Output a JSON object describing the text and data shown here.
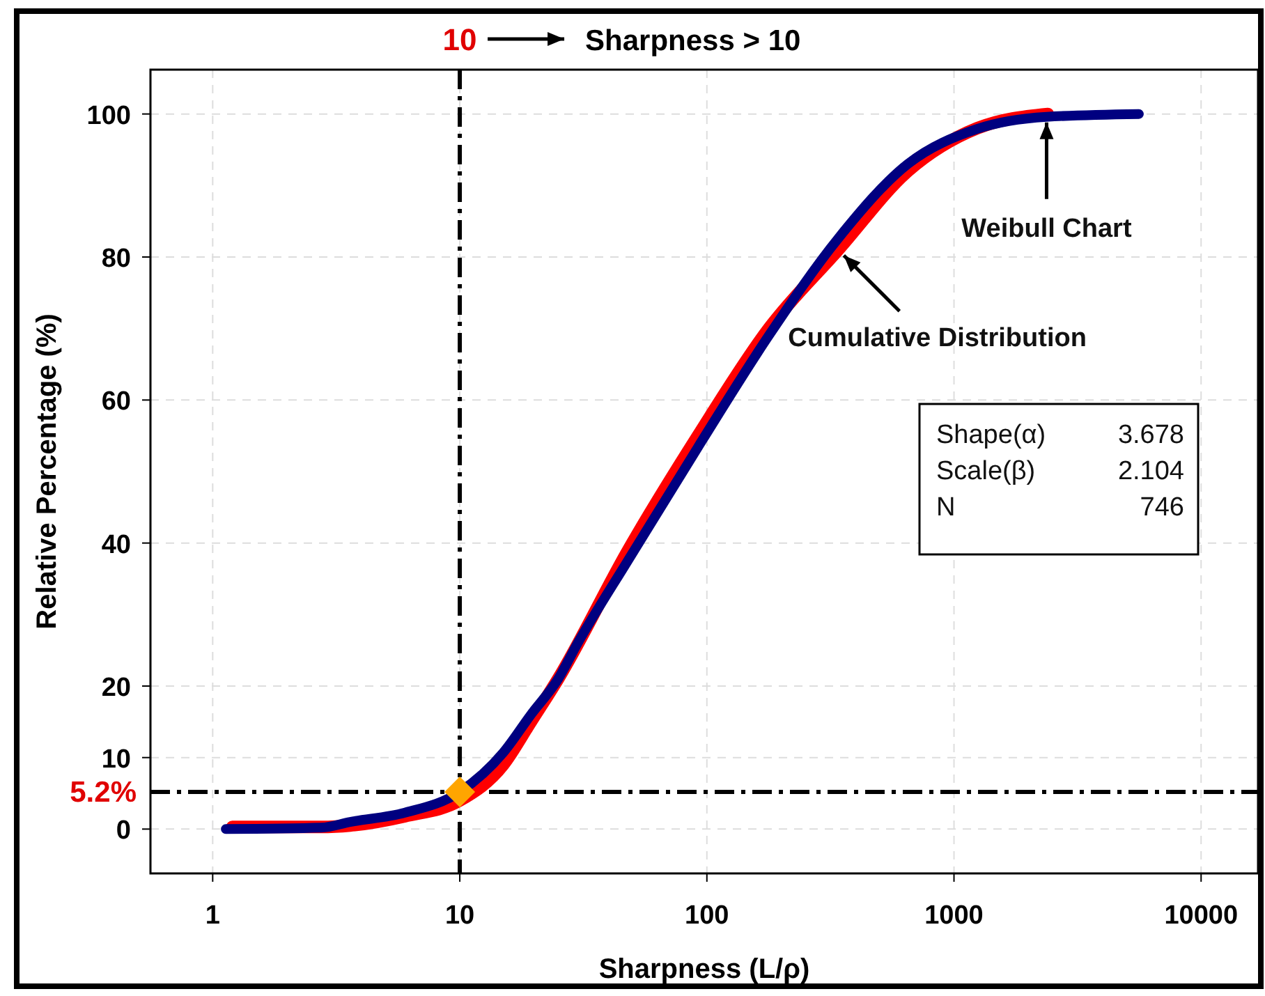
{
  "chart_data": {
    "type": "line",
    "xlabel": "Sharpness (L/ρ)",
    "ylabel": "Relative Percentage (%)",
    "log": "x",
    "xlim": [
      0.56,
      17000
    ],
    "xticks": [
      1,
      10,
      100,
      1000,
      10000
    ],
    "ylim": [
      -6.2,
      106.2
    ],
    "yticks": [
      0,
      10,
      20,
      40,
      60,
      80,
      100
    ],
    "grid": true,
    "series": [
      {
        "name": "Cumulative Distribution",
        "color": "#ff0000",
        "x": [
          1.2,
          2.75,
          3.6,
          6,
          10,
          15,
          19.4,
          25,
          48,
          92,
          178,
          340,
          650,
          1240,
          2400
        ],
        "values": [
          0.3,
          0.3,
          0.5,
          1.8,
          4,
          9,
          15,
          21,
          39,
          55,
          70,
          81,
          92,
          98,
          100
        ]
      },
      {
        "name": "Weibull Chart",
        "color": "#000080",
        "x": [
          1.13,
          2.75,
          3.6,
          6,
          10,
          15,
          19.4,
          25,
          30,
          48,
          92,
          178,
          340,
          650,
          1240,
          2370,
          5600
        ],
        "values": [
          0,
          0.2,
          1,
          2.3,
          5.2,
          10.7,
          16,
          21,
          26,
          37.6,
          53.4,
          69,
          82.6,
          93,
          97.9,
          99.6,
          100
        ]
      },
      {
        "type": "scatter",
        "marker": "diamond",
        "color": "#ffa500",
        "x": [
          10
        ],
        "values": [
          5.2
        ]
      }
    ],
    "ref_lines": [
      {
        "axis": "x",
        "value": 10,
        "label": "10",
        "line_style": "dashed"
      },
      {
        "axis": "y",
        "value": 5.2,
        "label": "5.2%",
        "line_style": "dashed"
      }
    ],
    "annotations": [
      "Sharpness > 10",
      "Shape(α) 3.678",
      "Scale(β) 2.104",
      "N 746"
    ]
  }
}
